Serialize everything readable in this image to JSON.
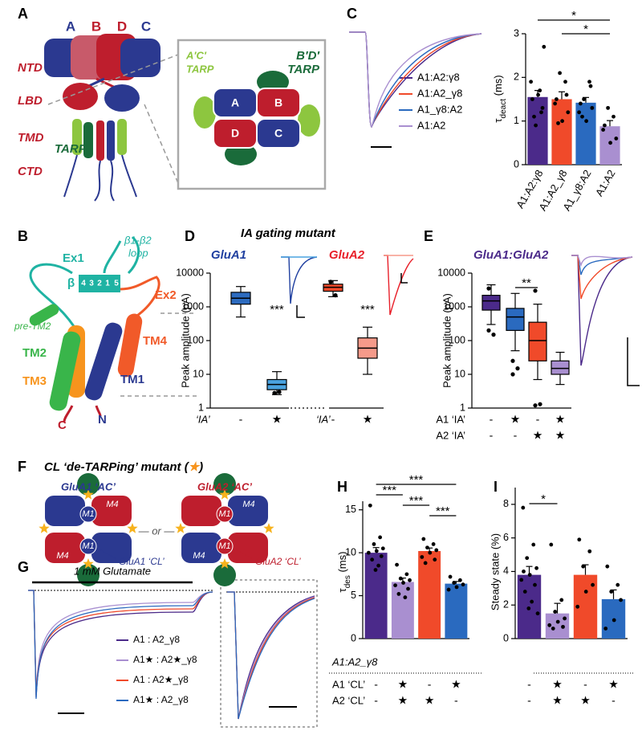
{
  "figure": {
    "panel_labels": [
      "A",
      "B",
      "C",
      "D",
      "E",
      "F",
      "G",
      "H",
      "I"
    ],
    "a": {
      "subunits": [
        "A",
        "B",
        "D",
        "C"
      ],
      "domains": [
        "NTD",
        "LBD",
        "TMD",
        "CTD"
      ],
      "tarp": "TARP",
      "inset_tarps": [
        {
          "name": "A′C′",
          "tarp": "TARP"
        },
        {
          "name": "B′D′",
          "tarp": "TARP"
        }
      ],
      "inset_subunits": [
        "A",
        "B",
        "D",
        "C"
      ]
    },
    "b": {
      "loop": [
        "β1-β2",
        "loop"
      ],
      "ex1": "Ex1",
      "ex2": "Ex2",
      "beta": "β",
      "strands": [
        "4",
        "3",
        "2",
        "1",
        "5"
      ],
      "pre_tm2": "pre-TM2",
      "tm2": "TM2",
      "tm3": "TM3",
      "tm4": "TM4",
      "tm1": "TM1",
      "c_term": "C",
      "n_term": "N"
    },
    "f": {
      "title": [
        "CL ‘de-TARPing’ mutant (",
        "★",
        ")"
      ],
      "or": "— or —",
      "tetramers": [
        {
          "title": "GluA1 ‘AC’",
          "m": [
            "M4",
            "M1",
            "M1",
            "M4"
          ],
          "cl": "GluA1 ‘CL’"
        },
        {
          "title": "GluA2 ‘AC’",
          "m": [
            "M4",
            "M1",
            "M1",
            "M4"
          ],
          "cl": "GluA2 ‘CL’"
        }
      ]
    },
    "g": {
      "title": "1 mM Glutamate",
      "legend": [
        {
          "name": "A1 : A2_γ8",
          "color": "#4b2a8a"
        },
        {
          "name": "A1★ : A2★_γ8",
          "color": "#a98fd0"
        },
        {
          "name": "A1 : A2★_γ8",
          "color": "#f04a2a"
        },
        {
          "name": "A1★ : A2_γ8",
          "color": "#2a6abf"
        }
      ]
    }
  },
  "chart_data": [
    {
      "type": "bar",
      "y_label": {
        "symbol": "τ",
        "sub": "deact",
        "unit": " (ms)"
      },
      "categories": [
        "A1:A2:γ8",
        "A1:A2_γ8",
        "A1_γ8:A2",
        "A1:A2"
      ],
      "values": [
        1.55,
        1.5,
        1.42,
        0.88
      ],
      "errors": [
        0.15,
        0.17,
        0.12,
        0.13
      ],
      "colors": [
        "#4b2a8a",
        "#f04a2a",
        "#2a6abf",
        "#a98fd0"
      ],
      "points": [
        [
          1.5,
          1.2,
          0.9,
          2.7,
          1.6,
          1.9,
          1.3,
          1.1,
          1.7
        ],
        [
          1.5,
          1.9,
          2.1,
          1.2,
          1.0,
          1.4,
          1.6,
          0.95
        ],
        [
          1.4,
          1.9,
          1.5,
          1.3,
          1.0,
          1.2,
          1.8,
          1.1
        ],
        [
          0.9,
          1.1,
          1.3,
          0.6,
          0.5,
          0.8
        ]
      ],
      "ylim": [
        0,
        3
      ],
      "yticks": [
        0,
        1,
        2,
        3
      ],
      "significance": [
        {
          "from": 0,
          "to": 3,
          "label": "*"
        },
        {
          "from": 1,
          "to": 3,
          "label": "*"
        }
      ]
    },
    {
      "type": "box",
      "title": "IA gating mutant",
      "y_label": "Peak amplitude (pA)",
      "log": true,
      "ylim": [
        1,
        10000
      ],
      "yticks": [
        1,
        10,
        100,
        1000,
        10000
      ],
      "groups": [
        {
          "name": "GluA1",
          "color": "#2040a0",
          "row_label": "‘IA’",
          "row": [
            "-",
            "★"
          ],
          "stars": "***",
          "boxes": [
            {
              "min": 500,
              "q1": 1200,
              "median": 1800,
              "q3": 2700,
              "max": 4000,
              "color": "#2d6bbf",
              "outliers": []
            },
            {
              "min": 2.5,
              "q1": 3.5,
              "median": 5,
              "q3": 7,
              "max": 12,
              "color": "#4aa3e0",
              "outliers": [
                2.8,
                3
              ]
            }
          ]
        },
        {
          "name": "GluA2",
          "color": "#e8202a",
          "row_label": "‘IA’",
          "row": [
            "-",
            "★"
          ],
          "stars": "***",
          "boxes": [
            {
              "min": 2000,
              "q1": 2900,
              "median": 3800,
              "q3": 4700,
              "max": 6000,
              "color": "#f04a2a",
              "outliers": [
                5500,
                2200
              ]
            },
            {
              "min": 10,
              "q1": 30,
              "median": 60,
              "q3": 120,
              "max": 250,
              "color": "#f59a8a",
              "outliers": []
            }
          ]
        }
      ]
    },
    {
      "type": "box",
      "title": "GluA1:GluA2",
      "y_label": "Peak amplitude (pA)",
      "log": true,
      "ylim": [
        1,
        10000
      ],
      "yticks": [
        1,
        10,
        100,
        1000,
        10000
      ],
      "boxes": [
        {
          "min": 300,
          "q1": 800,
          "median": 1500,
          "q3": 2200,
          "max": 4500,
          "color": "#4b2a8a",
          "outliers": [
            200,
            150,
            3500
          ]
        },
        {
          "min": 50,
          "q1": 200,
          "median": 500,
          "q3": 900,
          "max": 2500,
          "color": "#2a6abf",
          "outliers": [
            25,
            15,
            10
          ]
        },
        {
          "min": 7,
          "q1": 25,
          "median": 100,
          "q3": 350,
          "max": 1200,
          "color": "#f04a2a",
          "outliers": [
            3000,
            1.3,
            1.2
          ]
        },
        {
          "min": 5,
          "q1": 10,
          "median": 15,
          "q3": 25,
          "max": 45,
          "color": "#a98fd0",
          "outliers": []
        }
      ],
      "rows": [
        {
          "label": "A1 ‘IA’",
          "values": [
            "-",
            "★",
            "-",
            "★"
          ]
        },
        {
          "label": "A2 ‘IA’",
          "values": [
            "-",
            "-",
            "★",
            "★"
          ]
        }
      ],
      "significance": [
        {
          "from": 1,
          "to": 2,
          "label": "**"
        }
      ]
    },
    {
      "type": "bar",
      "y_label": {
        "symbol": "τ",
        "sub": "des",
        "unit": " (ms)"
      },
      "group_label": "A1:A2_γ8",
      "values": [
        10.0,
        6.6,
        10.2,
        6.4
      ],
      "errors": [
        0.6,
        0.45,
        0.35,
        0.25
      ],
      "colors": [
        "#4b2a8a",
        "#a98fd0",
        "#f04a2a",
        "#2a6abf"
      ],
      "points": [
        [
          15.5,
          11.8,
          11.0,
          10.5,
          10.2,
          10.0,
          9.6,
          9.2,
          8.5,
          8.0
        ],
        [
          8.6,
          7.5,
          7.0,
          6.8,
          6.5,
          6.2,
          5.8,
          5.2,
          4.8
        ],
        [
          11.6,
          11.0,
          10.6,
          10.3,
          10.0,
          9.5,
          9.2,
          8.8
        ],
        [
          7.2,
          6.8,
          6.5,
          6.3,
          6.0,
          5.7
        ]
      ],
      "ylim": [
        0,
        16
      ],
      "yticks": [
        0,
        5,
        10,
        15
      ],
      "rows": [
        {
          "label": "A1 ‘CL’",
          "values": [
            "-",
            "★",
            "-",
            "★"
          ]
        },
        {
          "label": "A2 ‘CL’",
          "values": [
            "-",
            "★",
            "★",
            "-"
          ]
        }
      ],
      "significance": [
        {
          "from": 0,
          "to": 3,
          "label": "***"
        },
        {
          "from": 0,
          "to": 1,
          "label": "***"
        },
        {
          "from": 1,
          "to": 2,
          "label": "***"
        },
        {
          "from": 2,
          "to": 3,
          "label": "***"
        }
      ]
    },
    {
      "type": "bar",
      "y_label": "Steady state (%)",
      "values": [
        3.8,
        1.5,
        3.8,
        2.35
      ],
      "errors": [
        0.5,
        0.6,
        0.6,
        0.55
      ],
      "colors": [
        "#4b2a8a",
        "#a98fd0",
        "#f04a2a",
        "#2a6abf"
      ],
      "points": [
        [
          7.8,
          5.6,
          4.8,
          4.2,
          3.8,
          3.5,
          3.2,
          2.8,
          2.2,
          1.8,
          1.5,
          4.0
        ],
        [
          5.6,
          2.3,
          1.6,
          1.2,
          1.0,
          0.8,
          0.7,
          0.6
        ],
        [
          5.9,
          5.2,
          4.3,
          3.2,
          2.8,
          1.9
        ],
        [
          4.3,
          3.2,
          2.8,
          2.3,
          1.1,
          0.6
        ]
      ],
      "ylim": [
        0,
        9
      ],
      "yticks": [
        0,
        2,
        4,
        6,
        8
      ],
      "rows": [
        {
          "values": [
            "-",
            "★",
            "-",
            "★"
          ]
        },
        {
          "values": [
            "-",
            "★",
            "★",
            "-"
          ]
        }
      ],
      "significance": [
        {
          "from": 0,
          "to": 1,
          "label": "*"
        }
      ]
    }
  ]
}
